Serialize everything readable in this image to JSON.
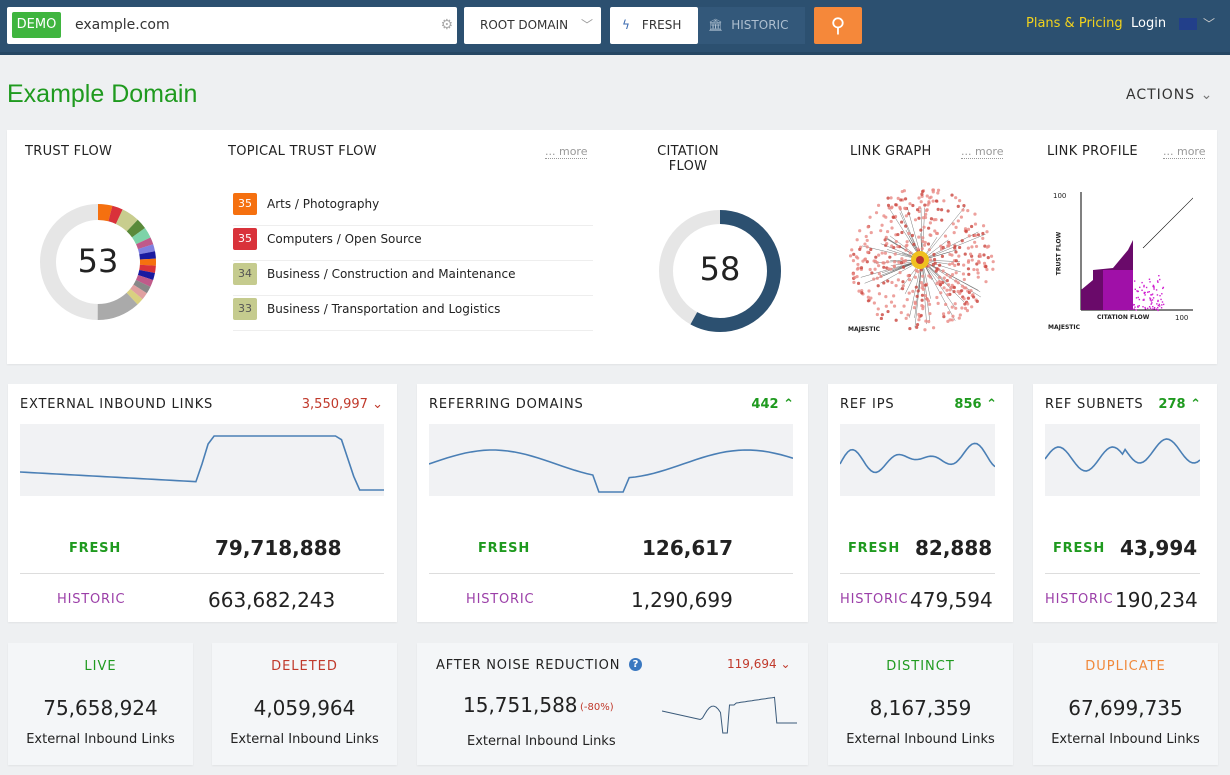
{
  "nav": {
    "demo": "DEMO",
    "query": "example.com",
    "scope": "ROOT DOMAIN",
    "fresh": "FRESH",
    "historic": "HISTORIC",
    "plans": "Plans & Pricing",
    "login": "Login"
  },
  "page": {
    "title": "Example Domain",
    "actions": "ACTIONS"
  },
  "trust_flow": {
    "label": "TRUST FLOW",
    "value": "53",
    "segment_colors": [
      "#f5700f",
      "#d9323a",
      "#c8cd8e",
      "#5a8a3a",
      "#7dd3a8",
      "#c05a8a",
      "#8080e0",
      "#1a1aa0",
      "#f5700f",
      "#d9323a",
      "#1a1aa0",
      "#c05a8a",
      "#888",
      "#e0a0a0",
      "#d9d080",
      "#aaaaaa"
    ]
  },
  "topical": {
    "label": "TOPICAL TRUST FLOW",
    "more": "... more",
    "items": [
      {
        "score": "35",
        "label": "Arts / Photography",
        "color": "#f5700f"
      },
      {
        "score": "35",
        "label": "Computers / Open Source",
        "color": "#d9323a"
      },
      {
        "score": "34",
        "label": "Business / Construction and Maintenance",
        "color": "#c5cb8e"
      },
      {
        "score": "33",
        "label": "Business / Transportation and Logistics",
        "color": "#c5cb8e"
      }
    ]
  },
  "citation_flow": {
    "label_1": "CITATION",
    "label_2": "FLOW",
    "value": "58",
    "color": "#2c5070"
  },
  "link_graph": {
    "label": "LINK GRAPH",
    "more": "... more",
    "logo": "MAJESTIC"
  },
  "link_profile": {
    "label": "LINK PROFILE",
    "more": "... more",
    "y_label": "TRUST FLOW",
    "x_label": "CITATION FLOW",
    "y_max": "100",
    "x_max": "100",
    "logo": "MAJESTIC"
  },
  "stats": [
    {
      "title": "EXTERNAL INBOUND LINKS",
      "change": "3,550,997",
      "dir": "down",
      "fresh_label": "FRESH",
      "fresh": "79,718,888",
      "historic_label": "HISTORIC",
      "historic": "663,682,243"
    },
    {
      "title": "REFERRING DOMAINS",
      "change": "442",
      "dir": "up",
      "fresh_label": "FRESH",
      "fresh": "126,617",
      "historic_label": "HISTORIC",
      "historic": "1,290,699"
    },
    {
      "title": "REF IPS",
      "change": "856",
      "dir": "up",
      "fresh_label": "FRESH",
      "fresh": "82,888",
      "historic_label": "HISTORIC",
      "historic": "479,594"
    },
    {
      "title": "REF SUBNETS",
      "change": "278",
      "dir": "up",
      "fresh_label": "FRESH",
      "fresh": "43,994",
      "historic_label": "HISTORIC",
      "historic": "190,234"
    }
  ],
  "bottom": [
    {
      "title": "LIVE",
      "value": "75,658,924",
      "sub": "External Inbound Links",
      "color": "#1f9a1f"
    },
    {
      "title": "DELETED",
      "value": "4,059,964",
      "sub": "External Inbound Links",
      "color": "#c0392b"
    },
    {
      "title": "DISTINCT",
      "value": "8,167,359",
      "sub": "External Inbound Links",
      "color": "#1f9a1f"
    },
    {
      "title": "DUPLICATE",
      "value": "67,699,735",
      "sub": "External Inbound Links",
      "color": "#f0883a"
    }
  ],
  "noise": {
    "title": "AFTER NOISE REDUCTION",
    "change": "119,694",
    "dir": "down",
    "value": "15,751,588",
    "pct": "(-80%)",
    "sub": "External Inbound Links"
  },
  "colors": {
    "green": "#1f9a1f",
    "red": "#c0392b",
    "purple": "#9b3fa8",
    "nav": "#2c5070",
    "line": "#4a7fb5"
  }
}
